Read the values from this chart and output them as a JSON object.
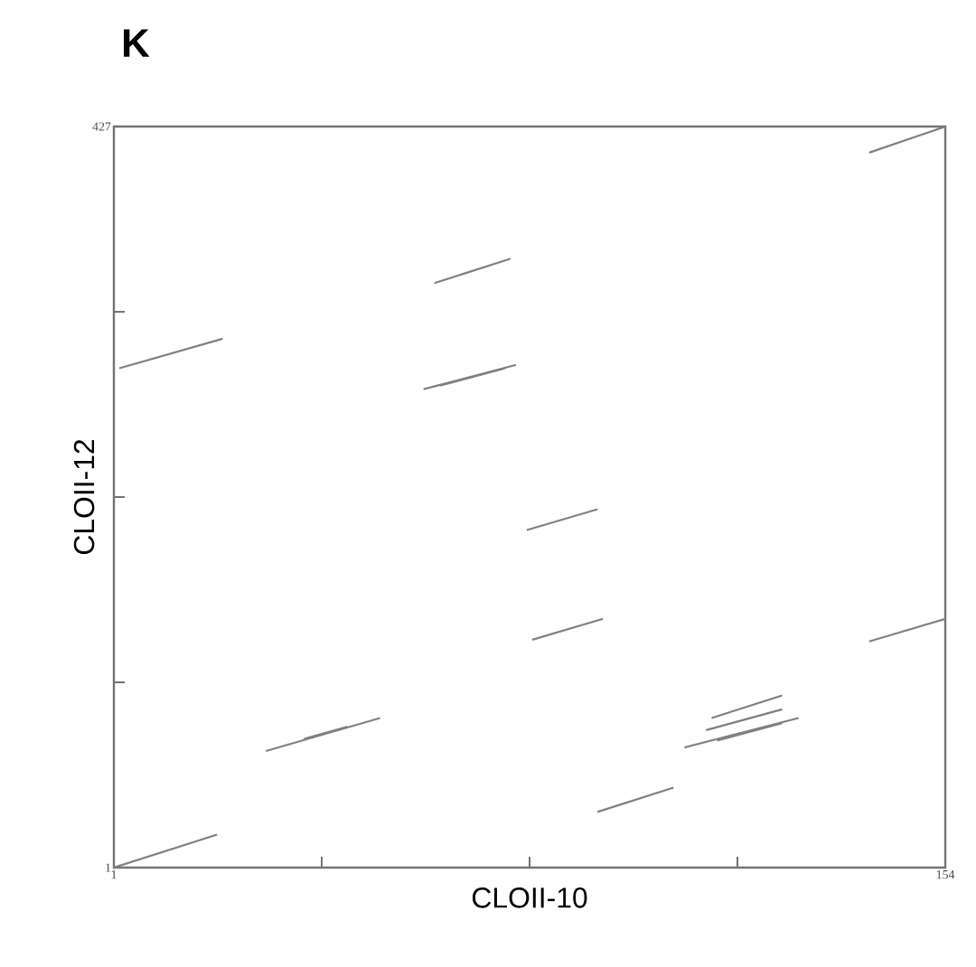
{
  "chart_data": {
    "type": "line",
    "title": "K",
    "xlabel": "CLOII-10",
    "ylabel": "CLOII-12",
    "xlim": [
      1,
      154
    ],
    "ylim": [
      1,
      427
    ],
    "xticks": [
      1,
      {
        "value": 39.25,
        "label": null
      },
      {
        "value": 77.5,
        "label": null
      },
      {
        "value": 115.75,
        "label": null
      },
      154
    ],
    "yticks": [
      1,
      {
        "value": 107.5,
        "label": null
      },
      {
        "value": 214,
        "label": null
      },
      {
        "value": 320.5,
        "label": null
      },
      427
    ],
    "grid": false,
    "marker": "none",
    "line_style": "solid",
    "series": [
      {
        "color": "#808080",
        "x": [
          1,
          20
        ],
        "values": [
          1,
          20
        ]
      },
      {
        "color": "#808080",
        "x": [
          29,
          50
        ],
        "values": [
          68,
          87
        ]
      },
      {
        "color": "#808080",
        "x": [
          36,
          44
        ],
        "values": [
          75,
          82
        ]
      },
      {
        "color": "#808080",
        "x": [
          2,
          21
        ],
        "values": [
          288,
          305
        ]
      },
      {
        "color": "#808080",
        "x": [
          60,
          74
        ],
        "values": [
          337,
          351
        ]
      },
      {
        "color": "#808080",
        "x": [
          58,
          75
        ],
        "values": [
          276,
          290
        ]
      },
      {
        "color": "#808080",
        "x": [
          61,
          73
        ],
        "values": [
          278,
          288
        ]
      },
      {
        "color": "#808080",
        "x": [
          140,
          154
        ],
        "values": [
          412,
          427
        ]
      },
      {
        "color": "#808080",
        "x": [
          77,
          90
        ],
        "values": [
          195,
          207
        ]
      },
      {
        "color": "#808080",
        "x": [
          78,
          91
        ],
        "values": [
          132,
          144
        ]
      },
      {
        "color": "#808080",
        "x": [
          140,
          154
        ],
        "values": [
          131,
          144
        ]
      },
      {
        "color": "#808080",
        "x": [
          90,
          104
        ],
        "values": [
          33,
          47
        ]
      },
      {
        "color": "#808080",
        "x": [
          106,
          127
        ],
        "values": [
          70,
          87
        ]
      },
      {
        "color": "#808080",
        "x": [
          111,
          124
        ],
        "values": [
          87,
          100
        ]
      },
      {
        "color": "#808080",
        "x": [
          110,
          124
        ],
        "values": [
          80,
          92
        ]
      },
      {
        "color": "#808080",
        "x": [
          112,
          124
        ],
        "values": [
          74,
          84
        ]
      }
    ]
  }
}
